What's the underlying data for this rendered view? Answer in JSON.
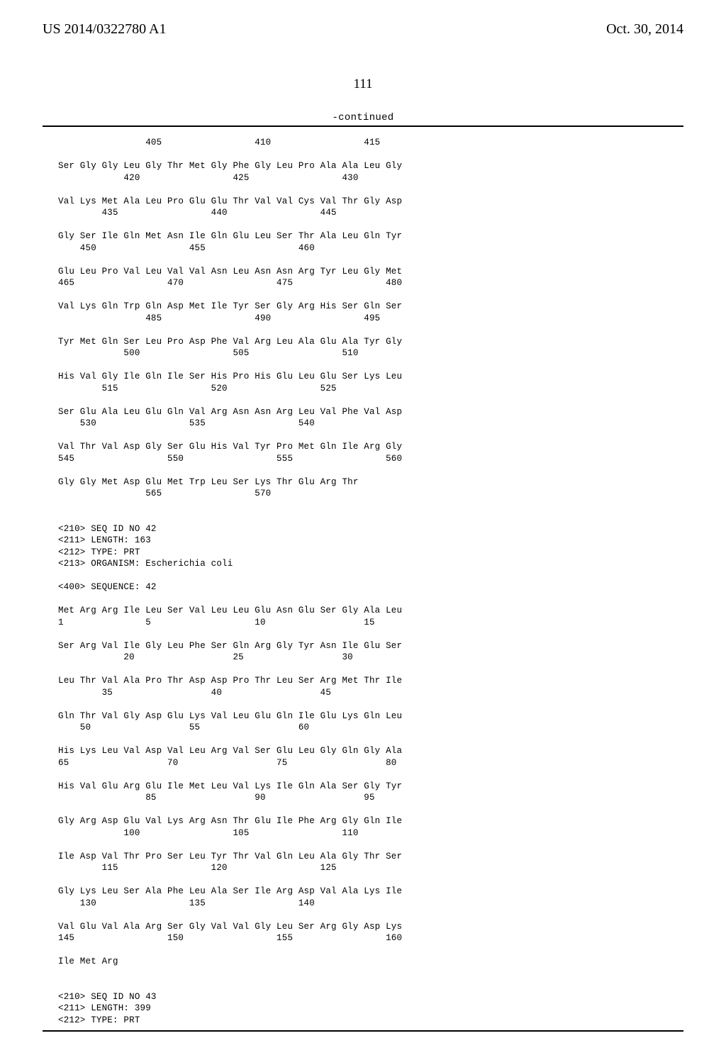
{
  "header": {
    "left": "US 2014/0322780 A1",
    "right": "Oct. 30, 2014"
  },
  "pagenum": "111",
  "continued": "-continued",
  "sequence_text": "                405                 410                 415\n\nSer Gly Gly Leu Gly Thr Met Gly Phe Gly Leu Pro Ala Ala Leu Gly\n            420                 425                 430\n\nVal Lys Met Ala Leu Pro Glu Glu Thr Val Val Cys Val Thr Gly Asp\n        435                 440                 445\n\nGly Ser Ile Gln Met Asn Ile Gln Glu Leu Ser Thr Ala Leu Gln Tyr\n    450                 455                 460\n\nGlu Leu Pro Val Leu Val Val Asn Leu Asn Asn Arg Tyr Leu Gly Met\n465                 470                 475                 480\n\nVal Lys Gln Trp Gln Asp Met Ile Tyr Ser Gly Arg His Ser Gln Ser\n                485                 490                 495\n\nTyr Met Gln Ser Leu Pro Asp Phe Val Arg Leu Ala Glu Ala Tyr Gly\n            500                 505                 510\n\nHis Val Gly Ile Gln Ile Ser His Pro His Glu Leu Glu Ser Lys Leu\n        515                 520                 525\n\nSer Glu Ala Leu Glu Gln Val Arg Asn Asn Arg Leu Val Phe Val Asp\n    530                 535                 540\n\nVal Thr Val Asp Gly Ser Glu His Val Tyr Pro Met Gln Ile Arg Gly\n545                 550                 555                 560\n\nGly Gly Met Asp Glu Met Trp Leu Ser Lys Thr Glu Arg Thr\n                565                 570\n\n\n<210> SEQ ID NO 42\n<211> LENGTH: 163\n<212> TYPE: PRT\n<213> ORGANISM: Escherichia coli\n\n<400> SEQUENCE: 42\n\nMet Arg Arg Ile Leu Ser Val Leu Leu Glu Asn Glu Ser Gly Ala Leu\n1               5                   10                  15\n\nSer Arg Val Ile Gly Leu Phe Ser Gln Arg Gly Tyr Asn Ile Glu Ser\n            20                  25                  30\n\nLeu Thr Val Ala Pro Thr Asp Asp Pro Thr Leu Ser Arg Met Thr Ile\n        35                  40                  45\n\nGln Thr Val Gly Asp Glu Lys Val Leu Glu Gln Ile Glu Lys Gln Leu\n    50                  55                  60\n\nHis Lys Leu Val Asp Val Leu Arg Val Ser Glu Leu Gly Gln Gly Ala\n65                  70                  75                  80\n\nHis Val Glu Arg Glu Ile Met Leu Val Lys Ile Gln Ala Ser Gly Tyr\n                85                  90                  95\n\nGly Arg Asp Glu Val Lys Arg Asn Thr Glu Ile Phe Arg Gly Gln Ile\n            100                 105                 110\n\nIle Asp Val Thr Pro Ser Leu Tyr Thr Val Gln Leu Ala Gly Thr Ser\n        115                 120                 125\n\nGly Lys Leu Ser Ala Phe Leu Ala Ser Ile Arg Asp Val Ala Lys Ile\n    130                 135                 140\n\nVal Glu Val Ala Arg Ser Gly Val Val Gly Leu Ser Arg Gly Asp Lys\n145                 150                 155                 160\n\nIle Met Arg\n\n\n<210> SEQ ID NO 43\n<211> LENGTH: 399\n<212> TYPE: PRT"
}
